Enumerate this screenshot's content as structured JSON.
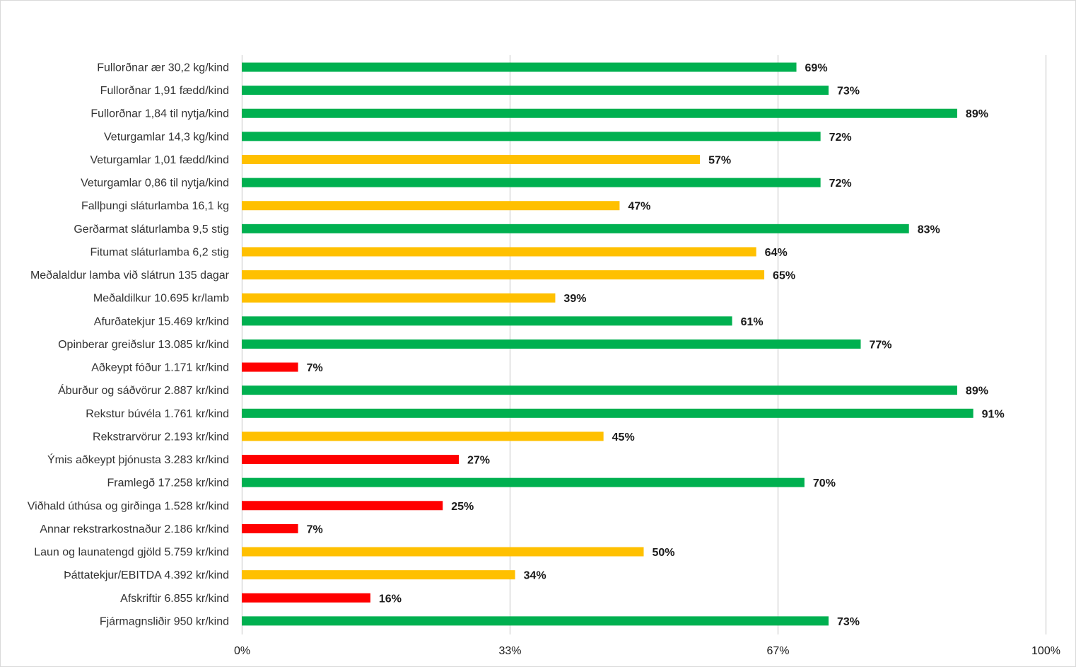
{
  "chart_data": {
    "type": "bar",
    "orientation": "horizontal",
    "title": "",
    "xlabel": "",
    "ylabel": "",
    "xlim": [
      0,
      100
    ],
    "grid": true,
    "legend": "none",
    "x_ticks": [
      {
        "value": 0,
        "label": "0%"
      },
      {
        "value": 33.33,
        "label": "33%"
      },
      {
        "value": 66.67,
        "label": "67%"
      },
      {
        "value": 100,
        "label": "100%"
      }
    ],
    "colors": {
      "green": "#00b050",
      "yellow": "#ffc000",
      "red": "#ff0000",
      "grid": "#d9d9d9"
    },
    "categories": [
      "Fullorðnar ær 30,2 kg/kind",
      "Fullorðnar 1,91 fædd/kind",
      "Fullorðnar 1,84 til nytja/kind",
      "Veturgamlar 14,3 kg/kind",
      "Veturgamlar 1,01 fædd/kind",
      "Veturgamlar 0,86 til nytja/kind",
      "Fallþungi sláturlamba 16,1 kg",
      "Gerðarmat sláturlamba 9,5 stig",
      "Fitumat sláturlamba 6,2 stig",
      "Meðalaldur lamba við slátrun 135 dagar",
      "Meðaldilkur 10.695 kr/lamb",
      "Afurðatekjur 15.469 kr/kind",
      "Opinberar greiðslur 13.085 kr/kind",
      "Aðkeypt fóður 1.171 kr/kind",
      "Áburður og sáðvörur 2.887 kr/kind",
      "Rekstur búvéla 1.761 kr/kind",
      "Rekstrarvörur 2.193 kr/kind",
      "Ýmis aðkeypt þjónusta 3.283 kr/kind",
      "Framlegð 17.258 kr/kind",
      "Viðhald úthúsa og girðinga 1.528 kr/kind",
      "Annar rekstrarkostnaður 2.186 kr/kind",
      "Laun og launatengd gjöld 5.759 kr/kind",
      "Þáttatekjur/EBITDA 4.392 kr/kind",
      "Afskriftir 6.855 kr/kind",
      "Fjármagnsliðir 950 kr/kind"
    ],
    "values": [
      69,
      73,
      89,
      72,
      57,
      72,
      47,
      83,
      64,
      65,
      39,
      61,
      77,
      7,
      89,
      91,
      45,
      27,
      70,
      25,
      7,
      50,
      34,
      16,
      73
    ],
    "value_labels": [
      "69%",
      "73%",
      "89%",
      "72%",
      "57%",
      "72%",
      "47%",
      "83%",
      "64%",
      "65%",
      "39%",
      "61%",
      "77%",
      "7%",
      "89%",
      "91%",
      "45%",
      "27%",
      "70%",
      "25%",
      "7%",
      "50%",
      "34%",
      "16%",
      "73%"
    ],
    "bar_colors": [
      "green",
      "green",
      "green",
      "green",
      "yellow",
      "green",
      "yellow",
      "green",
      "yellow",
      "yellow",
      "yellow",
      "green",
      "green",
      "red",
      "green",
      "green",
      "yellow",
      "red",
      "green",
      "red",
      "red",
      "yellow",
      "yellow",
      "red",
      "green"
    ]
  }
}
